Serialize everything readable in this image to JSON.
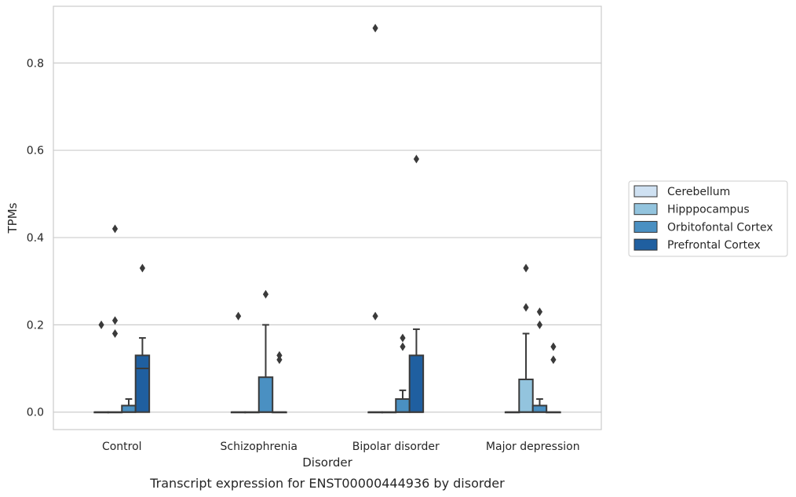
{
  "chart_data": {
    "type": "box",
    "xlabel": "Disorder",
    "ylabel": "TPMs",
    "caption": "Transcript expression for ENST00000444936 by disorder",
    "categories": [
      "Control",
      "Schizophrenia",
      "Bipolar disorder",
      "Major depression"
    ],
    "ylim": [
      -0.04,
      0.93
    ],
    "yticks": [
      0.0,
      0.2,
      0.4,
      0.6,
      0.8
    ],
    "ytick_labels": [
      "0.0",
      "0.2",
      "0.4",
      "0.6",
      "0.8"
    ],
    "grid": true,
    "legend_position": "right",
    "series": [
      {
        "name": "Cerebellum",
        "color": "#cfe1f2",
        "boxes": [
          {
            "q1": 0,
            "median": 0,
            "q3": 0,
            "whisker_low": 0,
            "whisker_high": 0,
            "outliers": [
              0.2
            ]
          },
          {
            "q1": 0,
            "median": 0,
            "q3": 0,
            "whisker_low": 0,
            "whisker_high": 0,
            "outliers": [
              0.22
            ]
          },
          {
            "q1": 0,
            "median": 0,
            "q3": 0,
            "whisker_low": 0,
            "whisker_high": 0,
            "outliers": [
              0.22,
              0.88
            ]
          },
          {
            "q1": 0,
            "median": 0,
            "q3": 0,
            "whisker_low": 0,
            "whisker_high": 0,
            "outliers": []
          }
        ]
      },
      {
        "name": "Hipppocampus",
        "color": "#93c4de",
        "boxes": [
          {
            "q1": 0,
            "median": 0,
            "q3": 0,
            "whisker_low": 0,
            "whisker_high": 0,
            "outliers": [
              0.18,
              0.21,
              0.42
            ]
          },
          {
            "q1": 0,
            "median": 0,
            "q3": 0,
            "whisker_low": 0,
            "whisker_high": 0,
            "outliers": []
          },
          {
            "q1": 0,
            "median": 0,
            "q3": 0,
            "whisker_low": 0,
            "whisker_high": 0,
            "outliers": []
          },
          {
            "q1": 0,
            "median": 0,
            "q3": 0.075,
            "whisker_low": 0,
            "whisker_high": 0.18,
            "outliers": [
              0.24,
              0.33
            ]
          }
        ]
      },
      {
        "name": "Orbitofontal Cortex",
        "color": "#4a90c2",
        "boxes": [
          {
            "q1": 0,
            "median": 0,
            "q3": 0.015,
            "whisker_low": 0,
            "whisker_high": 0.03,
            "outliers": []
          },
          {
            "q1": 0,
            "median": 0,
            "q3": 0.08,
            "whisker_low": 0,
            "whisker_high": 0.2,
            "outliers": [
              0.27
            ]
          },
          {
            "q1": 0,
            "median": 0,
            "q3": 0.03,
            "whisker_low": 0,
            "whisker_high": 0.05,
            "outliers": [
              0.15,
              0.17
            ]
          },
          {
            "q1": 0,
            "median": 0,
            "q3": 0.015,
            "whisker_low": 0,
            "whisker_high": 0.03,
            "outliers": [
              0.2,
              0.23
            ]
          }
        ]
      },
      {
        "name": "Prefrontal Cortex",
        "color": "#1f5fa0",
        "boxes": [
          {
            "q1": 0,
            "median": 0.1,
            "q3": 0.13,
            "whisker_low": 0,
            "whisker_high": 0.17,
            "outliers": [
              0.33
            ]
          },
          {
            "q1": 0,
            "median": 0,
            "q3": 0,
            "whisker_low": 0,
            "whisker_high": 0,
            "outliers": [
              0.12,
              0.13
            ]
          },
          {
            "q1": 0,
            "median": 0,
            "q3": 0.13,
            "whisker_low": 0,
            "whisker_high": 0.19,
            "outliers": [
              0.58
            ]
          },
          {
            "q1": 0,
            "median": 0,
            "q3": 0,
            "whisker_low": 0,
            "whisker_high": 0,
            "outliers": [
              0.12,
              0.15
            ]
          }
        ]
      }
    ]
  }
}
